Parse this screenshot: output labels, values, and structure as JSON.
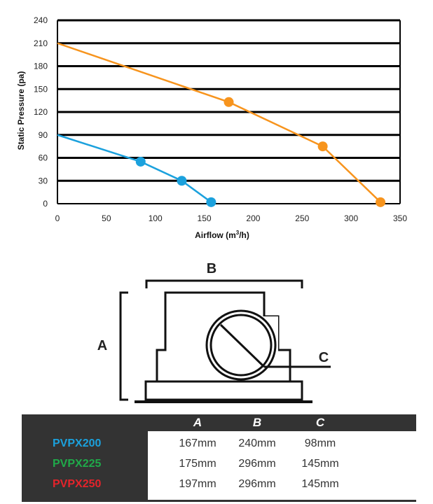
{
  "chart_data": {
    "type": "line",
    "title": "",
    "xlabel": "Airflow (m3/h)",
    "xlabel_main": "Airflow (m",
    "xlabel_sup": "3",
    "xlabel_end": "/h)",
    "ylabel": "Static Pressure (pa)",
    "xlim": [
      0,
      350
    ],
    "ylim": [
      0,
      240
    ],
    "xticks": [
      "0",
      "50",
      "100",
      "150",
      "200",
      "250",
      "300",
      "350"
    ],
    "yticks": [
      "0",
      "30",
      "60",
      "90",
      "120",
      "150",
      "180",
      "210",
      "240"
    ],
    "grid": "horizontal",
    "series": [
      {
        "color": "#f7941d",
        "x": [
          0,
          175,
          271,
          330
        ],
        "y": [
          210,
          133,
          75,
          2
        ],
        "markers": [
          false,
          true,
          true,
          true
        ]
      },
      {
        "color": "#1ba1dd",
        "x": [
          0,
          85,
          127,
          157
        ],
        "y": [
          90,
          55,
          30,
          2
        ],
        "markers": [
          false,
          true,
          true,
          true
        ]
      }
    ]
  },
  "diagram": {
    "label_a": "A",
    "label_b": "B",
    "label_c": "C"
  },
  "spec_table": {
    "headers": [
      "A",
      "B",
      "C"
    ],
    "rows": [
      {
        "model": "PVPX200",
        "color": "#1ba1dd",
        "a": "167mm",
        "b": "240mm",
        "c": "98mm"
      },
      {
        "model": "PVPX225",
        "color": "#1faa4a",
        "a": "175mm",
        "b": "296mm",
        "c": "145mm"
      },
      {
        "model": "PVPX250",
        "color": "#e5232b",
        "a": "197mm",
        "b": "296mm",
        "c": "145mm"
      }
    ]
  }
}
